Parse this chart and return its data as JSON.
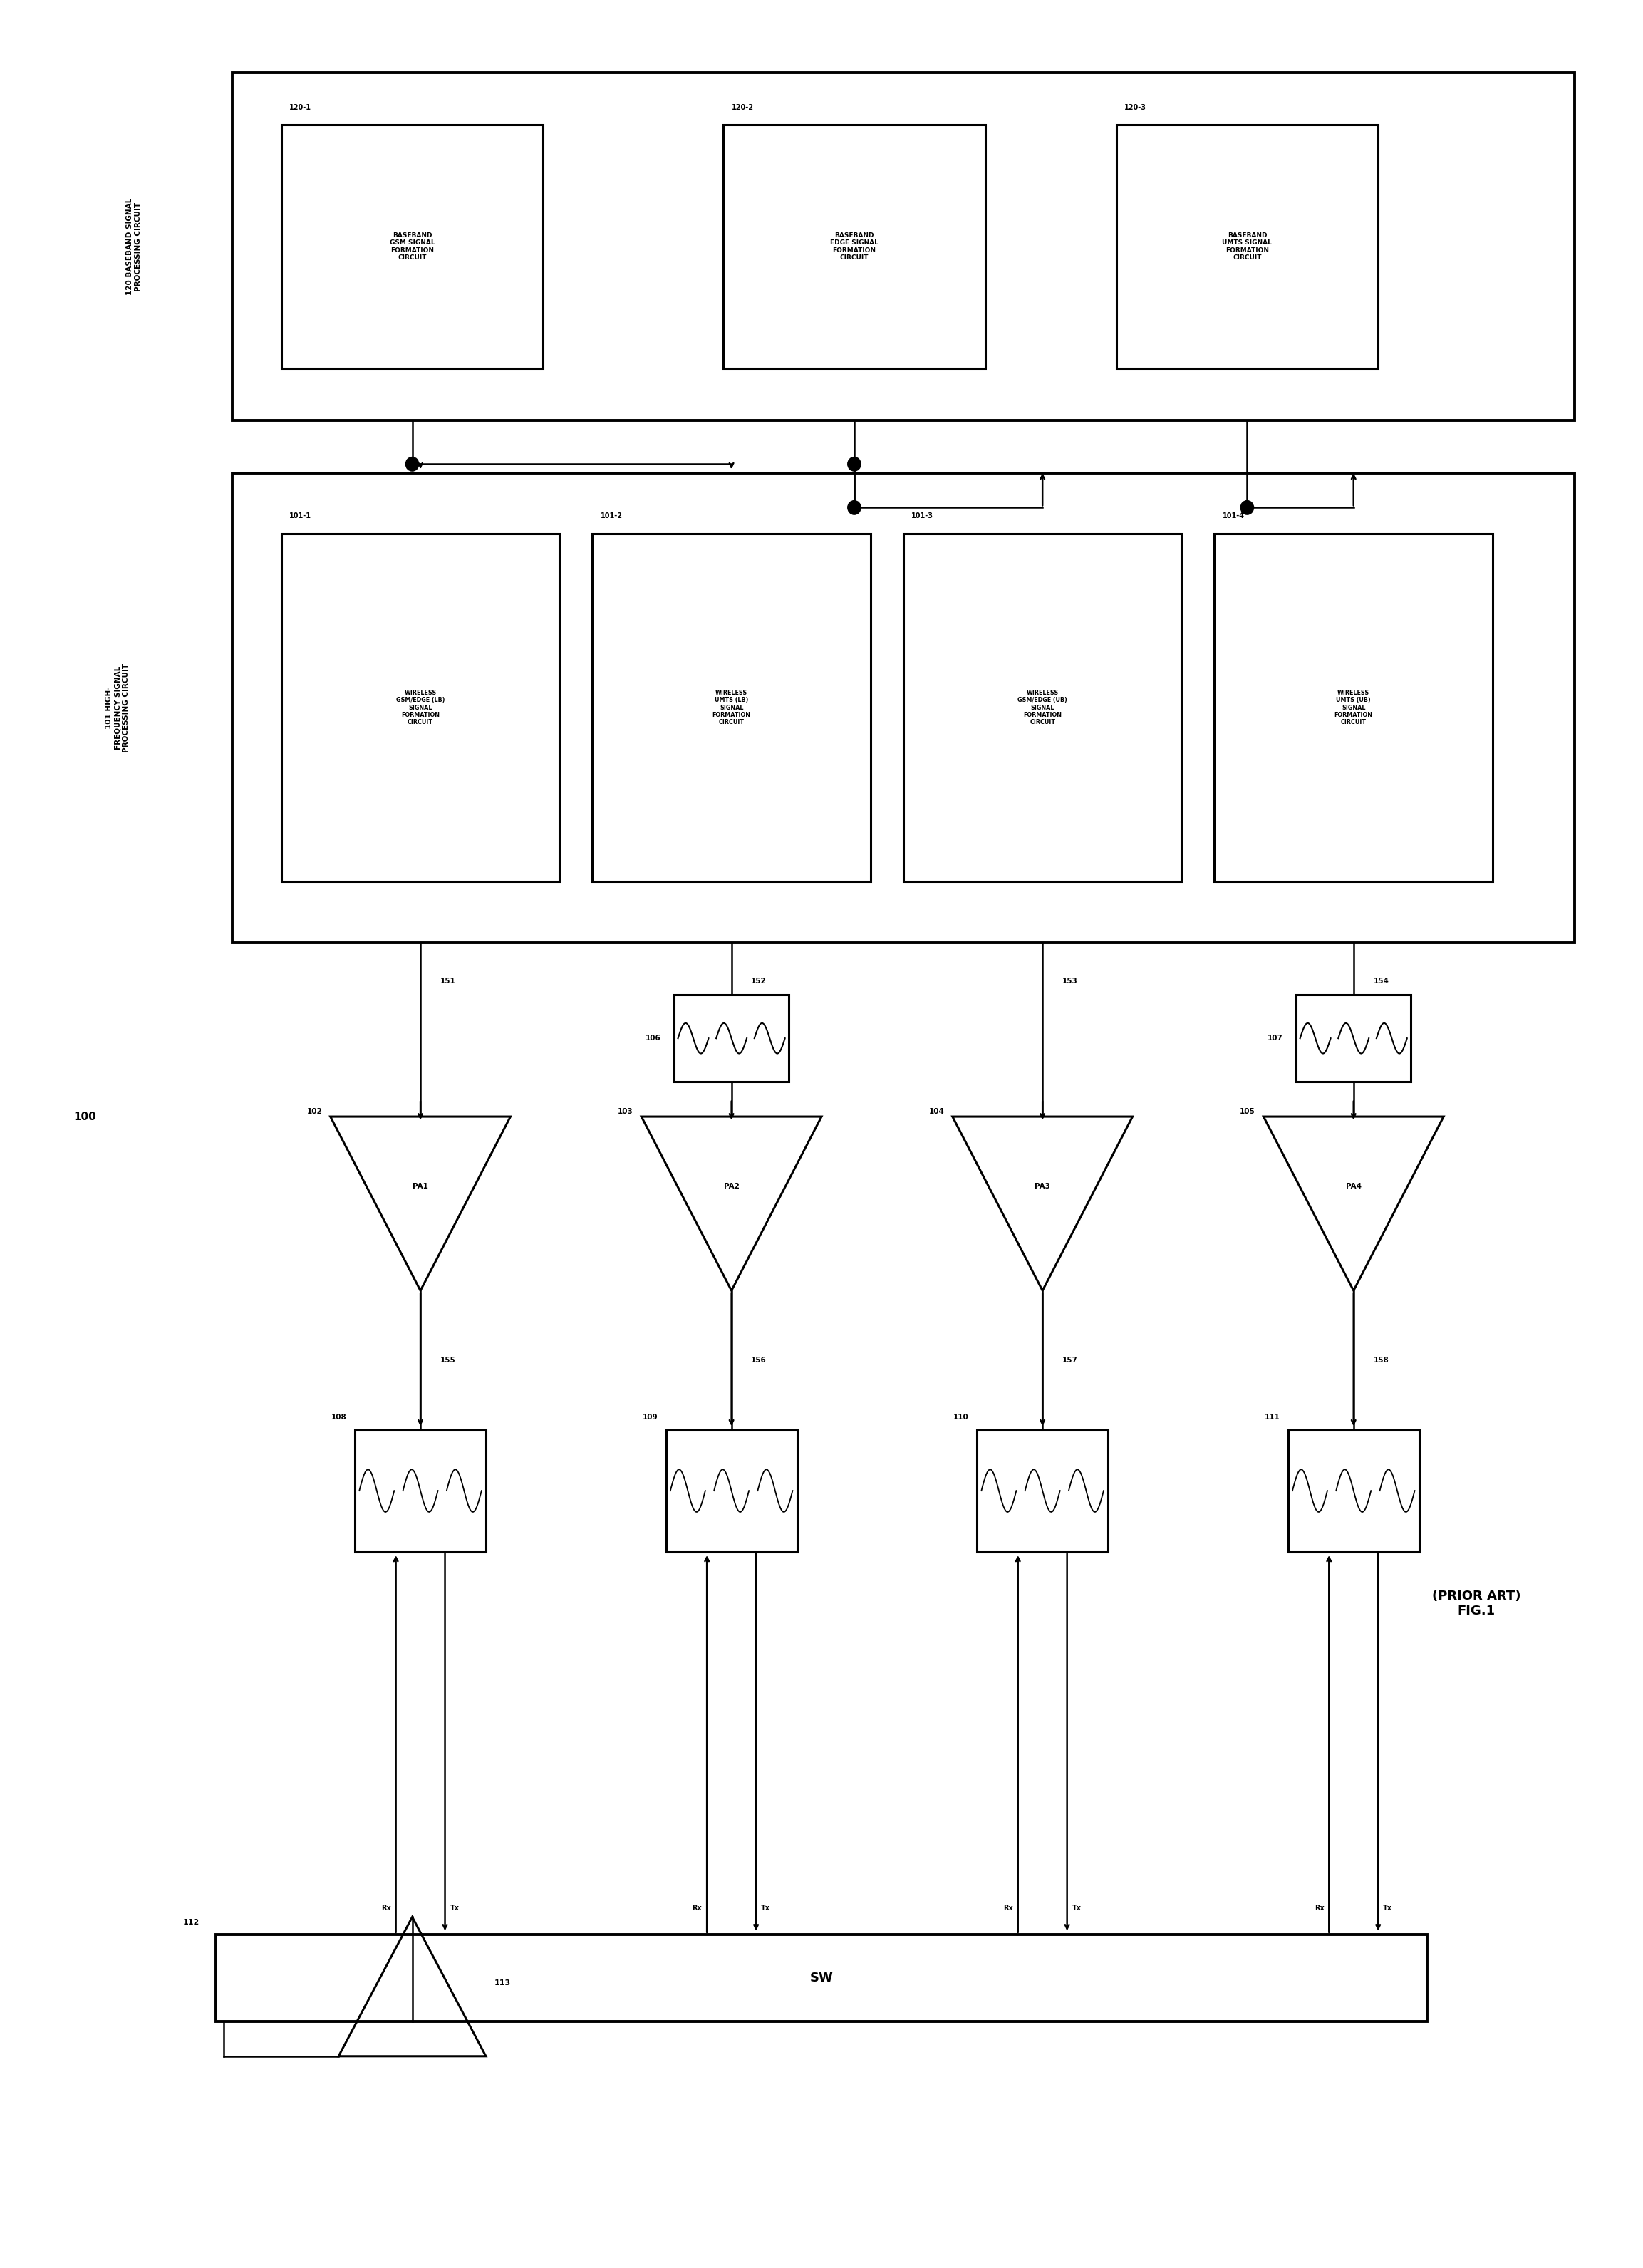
{
  "fig_width": 23.06,
  "fig_height": 31.83,
  "bg_color": "#ffffff",
  "bb_label": "120 BASEBAND SIGNAL\nPROCESSING CIRCUIT",
  "hf_label": "101 HIGH-\nFREQUENCY SIGNAL\nPROCESSING CIRCUIT",
  "bb_inner_labels": [
    "BASEBAND\nGSM SIGNAL\nFORMATION\nCIRCUIT",
    "BASEBAND\nEDGE SIGNAL\nFORMATION\nCIRCUIT",
    "BASEBAND\nUMTS SIGNAL\nFORMATION\nCIRCUIT"
  ],
  "bb_inner_ids": [
    "120-1",
    "120-2",
    "120-3"
  ],
  "hf_inner_labels": [
    "WIRELESS\nGSM/EDGE (LB)\nSIGNAL\nFORMATION\nCIRCUIT",
    "WIRELESS\nUMTS (LB)\nSIGNAL\nFORMATION\nCIRCUIT",
    "WIRELESS\nGSM/EDGE (UB)\nSIGNAL\nFORMATION\nCIRCUIT",
    "WIRELESS\nUMTS (UB)\nSIGNAL\nFORMATION\nCIRCUIT"
  ],
  "hf_inner_ids": [
    "101-1",
    "101-2",
    "101-3",
    "101-4"
  ],
  "wire_labels_1": [
    "151",
    "152",
    "153",
    "154"
  ],
  "wire_labels_2": [
    "155",
    "156",
    "157",
    "158"
  ],
  "filter_ids": [
    "106",
    "107"
  ],
  "pa_ids": [
    "102",
    "103",
    "104",
    "105"
  ],
  "pa_labels": [
    "PA1",
    "PA2",
    "PA3",
    "PA4"
  ],
  "dup_ids": [
    "108",
    "109",
    "110",
    "111"
  ],
  "sw_label": "SW",
  "sw_id": "112",
  "ant_id": "113",
  "main_id": "100",
  "title": "(PRIOR ART)\nFIG.1"
}
